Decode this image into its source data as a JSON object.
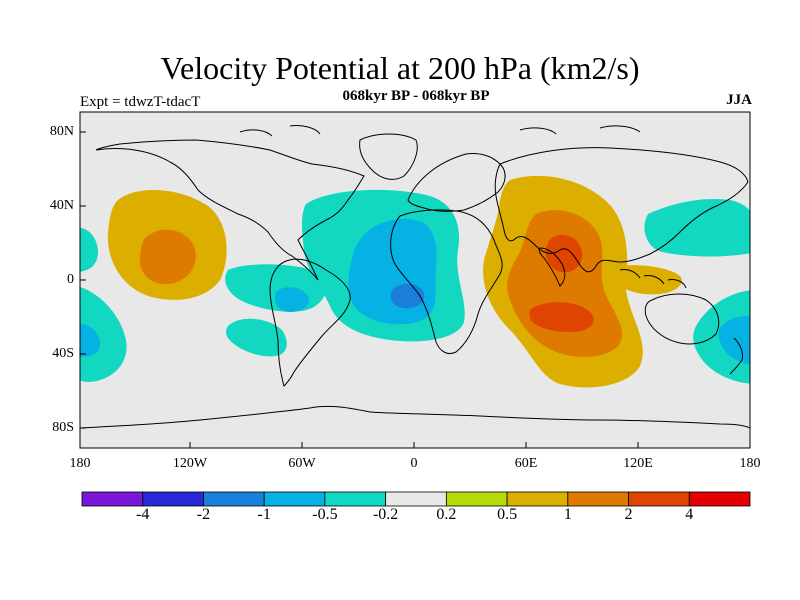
{
  "title": "Velocity Potential at 200 hPa (km2/s)",
  "subtitle": "068kyr BP - 068kyr BP",
  "experiment": "Expt = tdwzT-tdacT",
  "season": "JJA",
  "axes": {
    "lat_labels": [
      "80N",
      "40N",
      "0",
      "40S",
      "80S"
    ],
    "lon_labels": [
      "180",
      "120W",
      "60W",
      "0",
      "60E",
      "120E",
      "180"
    ]
  },
  "colorbar": {
    "colors": [
      "#7a16d8",
      "#2828d4",
      "#1a7fd8",
      "#06b2e3",
      "#13d8c1",
      "#e8e8e8",
      "#b6db0a",
      "#dcae00",
      "#de7a00",
      "#df4400",
      "#e40000"
    ],
    "labels": [
      "-4",
      "-2",
      "-1",
      "-0.5",
      "-0.2",
      "0.2",
      "0.5",
      "1",
      "2",
      "4"
    ]
  },
  "map": {
    "ocean_color": "#e8e8e8",
    "coastline_color": "#000000",
    "features": [
      {
        "name": "central-pacific-positive",
        "level": "0.5"
      },
      {
        "name": "central-pacific-positive-core",
        "level": "1"
      },
      {
        "name": "indian-ocean-positive",
        "level": "0.5"
      },
      {
        "name": "indian-ocean-positive-mid",
        "level": "1"
      },
      {
        "name": "indian-ocean-positive-core",
        "level": "2"
      },
      {
        "name": "atlantic-negative",
        "level": "-0.2"
      },
      {
        "name": "atlantic-negative-core",
        "level": "-0.5"
      },
      {
        "name": "atlantic-negative-center",
        "level": "-1"
      },
      {
        "name": "south-america-negative",
        "level": "-0.2"
      },
      {
        "name": "west-pacific-negative",
        "level": "-0.2"
      },
      {
        "name": "southwest-pacific-negative",
        "level": "-0.2"
      }
    ]
  }
}
